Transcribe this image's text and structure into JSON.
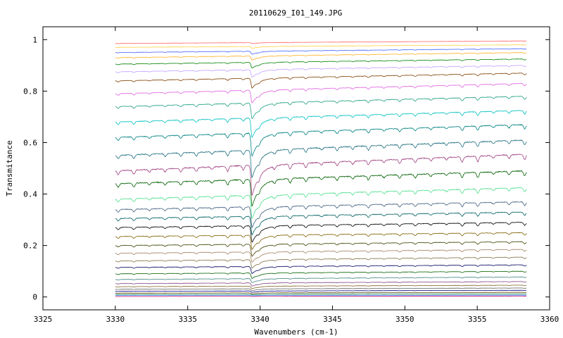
{
  "chart_data": {
    "type": "line",
    "title": "20110629_I01_149.JPG",
    "xlabel": "Wavenumbers (cm-1)",
    "ylabel": "Transmitance",
    "xlim": [
      3325,
      3360
    ],
    "ylim": [
      -0.05,
      1.05
    ],
    "x_ticks": [
      "3325",
      "3330",
      "3335",
      "3340",
      "3345",
      "3350",
      "3355",
      "3360"
    ],
    "y_ticks": [
      "0",
      "0.2",
      "0.4",
      "0.6",
      "0.8",
      "1"
    ],
    "data_x_range": [
      3330,
      3358.4
    ],
    "grid": false,
    "legend": "none",
    "series_colors": [
      "#c00060",
      "#4080ff",
      "#008040",
      "#604000",
      "#000080",
      "#606060",
      "#806020",
      "#804080",
      "#408080",
      "#006000",
      "#000060",
      "#807040",
      "#a08060",
      "#404000",
      "#806000",
      "#000000",
      "#006060",
      "#406080",
      "#50e090",
      "#006000",
      "#a04080",
      "#207080",
      "#008080",
      "#00c0c0",
      "#20a080",
      "#e060e0",
      "#804000",
      "#c0a0ff",
      "#008000",
      "#ffb020",
      "#4060ff",
      "#ffd040",
      "#ff6060"
    ],
    "series": [
      {
        "level_left": 0.002,
        "level_right": 0.003
      },
      {
        "level_left": 0.006,
        "level_right": 0.007
      },
      {
        "level_left": 0.01,
        "level_right": 0.012
      },
      {
        "level_left": 0.015,
        "level_right": 0.018
      },
      {
        "level_left": 0.022,
        "level_right": 0.026
      },
      {
        "level_left": 0.03,
        "level_right": 0.035
      },
      {
        "level_left": 0.04,
        "level_right": 0.046
      },
      {
        "level_left": 0.052,
        "level_right": 0.06
      },
      {
        "level_left": 0.068,
        "level_right": 0.078
      },
      {
        "level_left": 0.09,
        "level_right": 0.1
      },
      {
        "level_left": 0.115,
        "level_right": 0.125
      },
      {
        "level_left": 0.14,
        "level_right": 0.155
      },
      {
        "level_left": 0.17,
        "level_right": 0.185
      },
      {
        "level_left": 0.2,
        "level_right": 0.215
      },
      {
        "level_left": 0.235,
        "level_right": 0.25
      },
      {
        "level_left": 0.27,
        "level_right": 0.29
      },
      {
        "level_left": 0.305,
        "level_right": 0.33
      },
      {
        "level_left": 0.34,
        "level_right": 0.37
      },
      {
        "level_left": 0.38,
        "level_right": 0.425
      },
      {
        "level_left": 0.44,
        "level_right": 0.49
      },
      {
        "level_left": 0.49,
        "level_right": 0.555
      },
      {
        "level_left": 0.55,
        "level_right": 0.61
      },
      {
        "level_left": 0.62,
        "level_right": 0.67
      },
      {
        "level_left": 0.68,
        "level_right": 0.725
      },
      {
        "level_left": 0.74,
        "level_right": 0.78
      },
      {
        "level_left": 0.79,
        "level_right": 0.83
      },
      {
        "level_left": 0.84,
        "level_right": 0.87
      },
      {
        "level_left": 0.875,
        "level_right": 0.9
      },
      {
        "level_left": 0.905,
        "level_right": 0.925
      },
      {
        "level_left": 0.93,
        "level_right": 0.95
      },
      {
        "level_left": 0.95,
        "level_right": 0.965
      },
      {
        "level_left": 0.97,
        "level_right": 0.98
      },
      {
        "level_left": 0.985,
        "level_right": 0.995
      }
    ]
  }
}
